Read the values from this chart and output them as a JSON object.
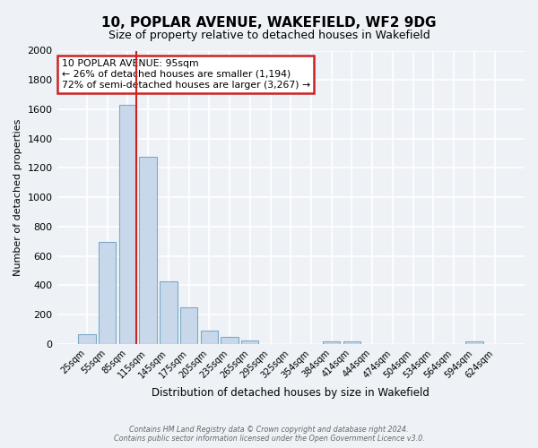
{
  "title": "10, POPLAR AVENUE, WAKEFIELD, WF2 9DG",
  "subtitle": "Size of property relative to detached houses in Wakefield",
  "xlabel": "Distribution of detached houses by size in Wakefield",
  "ylabel": "Number of detached properties",
  "bar_labels": [
    "25sqm",
    "55sqm",
    "85sqm",
    "115sqm",
    "145sqm",
    "175sqm",
    "205sqm",
    "235sqm",
    "265sqm",
    "295sqm",
    "325sqm",
    "354sqm",
    "384sqm",
    "414sqm",
    "444sqm",
    "474sqm",
    "504sqm",
    "534sqm",
    "564sqm",
    "594sqm",
    "624sqm"
  ],
  "bar_values": [
    65,
    695,
    1630,
    1275,
    430,
    250,
    90,
    50,
    25,
    0,
    0,
    0,
    20,
    15,
    0,
    0,
    0,
    0,
    0,
    20,
    0
  ],
  "bar_color": "#c8d8ea",
  "bar_edge_color": "#7aaac8",
  "red_line_index": 2,
  "property_label": "10 POPLAR AVENUE: 95sqm",
  "annotation_line1": "← 26% of detached houses are smaller (1,194)",
  "annotation_line2": "72% of semi-detached houses are larger (3,267) →",
  "annotation_box_color": "white",
  "annotation_box_edge": "#cc2222",
  "ylim": [
    0,
    2000
  ],
  "yticks": [
    0,
    200,
    400,
    600,
    800,
    1000,
    1200,
    1400,
    1600,
    1800,
    2000
  ],
  "background_color": "#eef2f7",
  "grid_color": "white",
  "footer_line1": "Contains HM Land Registry data © Crown copyright and database right 2024.",
  "footer_line2": "Contains public sector information licensed under the Open Government Licence v3.0."
}
